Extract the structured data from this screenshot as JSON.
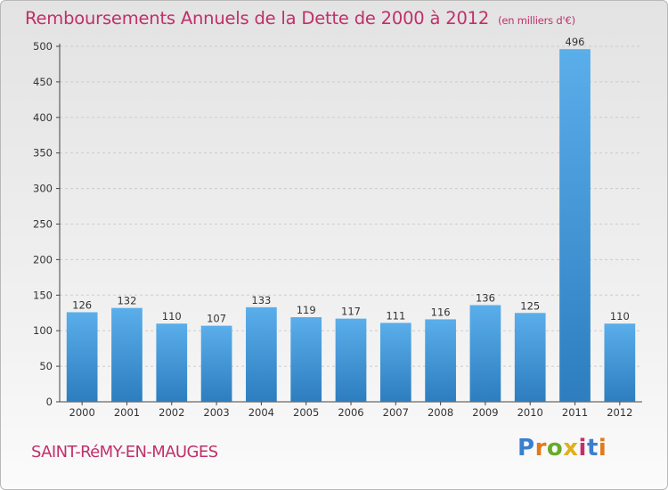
{
  "title": "Remboursements Annuels de la Dette de 2000 à 2012",
  "subtitle": "(en milliers d'€)",
  "commune": "SAINT-RéMY-EN-MAUGES",
  "logo": {
    "text": "Proxiti",
    "colors": [
      "#3a7fd0",
      "#e07a1a",
      "#6aaa2a",
      "#e0b01a",
      "#c0306a",
      "#3a7fd0",
      "#e07a1a"
    ]
  },
  "colors": {
    "bar_light": "#5aaeea",
    "bar_dark": "#2d7dbf",
    "title": "#c0306a",
    "grid": "#cccccc"
  },
  "chart_data": {
    "type": "bar",
    "categories": [
      "2000",
      "2001",
      "2002",
      "2003",
      "2004",
      "2005",
      "2006",
      "2007",
      "2008",
      "2009",
      "2010",
      "2011",
      "2012"
    ],
    "values": [
      126,
      132,
      110,
      107,
      133,
      119,
      117,
      111,
      116,
      136,
      125,
      496,
      110
    ],
    "ylim": [
      0,
      500
    ],
    "yticks": [
      0,
      50,
      100,
      150,
      200,
      250,
      300,
      350,
      400,
      450,
      500
    ],
    "grid": true,
    "title": "Remboursements Annuels de la Dette de 2000 à 2012",
    "ylabel": "",
    "xlabel": ""
  }
}
